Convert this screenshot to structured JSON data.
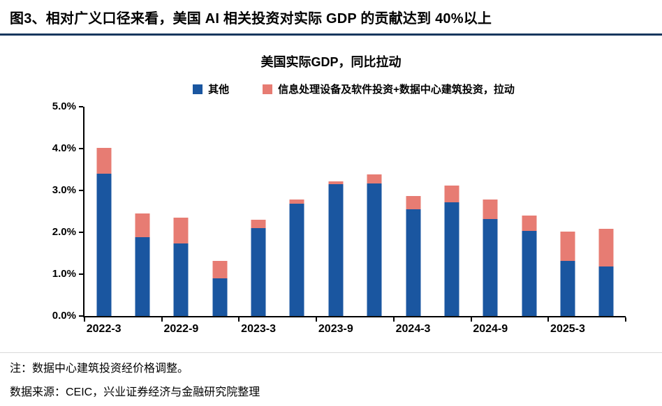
{
  "header": {
    "title": "图3、相对广义口径来看，美国 AI 相关投资对实际 GDP 的贡献达到 40%以上"
  },
  "chart": {
    "title": "美国实际GDP，同比拉动"
  },
  "chart_data": {
    "type": "bar",
    "stacked": true,
    "title": "美国实际GDP，同比拉动",
    "categories": [
      "2022-3",
      "2022-6",
      "2022-9",
      "2022-12",
      "2023-3",
      "2023-6",
      "2023-9",
      "2023-12",
      "2024-3",
      "2024-6",
      "2024-9",
      "2024-12",
      "2025-3",
      "2025-6"
    ],
    "x_tick_labels": [
      "2022-3",
      "2022-9",
      "2023-3",
      "2023-9",
      "2024-3",
      "2024-9",
      "2025-3"
    ],
    "x_tick_every": 2,
    "series": [
      {
        "name": "其他",
        "color": "#1A56A0",
        "values": [
          3.4,
          1.88,
          1.73,
          0.9,
          2.1,
          2.68,
          3.15,
          3.17,
          2.55,
          2.72,
          2.32,
          2.04,
          1.31,
          1.18
        ]
      },
      {
        "name": "信息处理设备及软件投资+数据中心建筑投资，拉动",
        "color": "#E77C73",
        "values": [
          0.62,
          0.57,
          0.62,
          0.42,
          0.2,
          0.1,
          0.07,
          0.21,
          0.31,
          0.4,
          0.46,
          0.36,
          0.7,
          0.9
        ]
      }
    ],
    "ylim": [
      0,
      5
    ],
    "y_ticks": [
      "0.0%",
      "1.0%",
      "2.0%",
      "3.0%",
      "4.0%",
      "5.0%"
    ],
    "grid": false,
    "legend_position": "top"
  },
  "footer": {
    "note": "注：数据中心建筑投资经价格调整。",
    "source": "数据来源：CEIC，兴业证券经济与金融研究院整理"
  },
  "colors": {
    "header_rule": "#17375E",
    "axis": "#000000",
    "other_series": "#1A56A0",
    "ai_series": "#E77C73"
  }
}
